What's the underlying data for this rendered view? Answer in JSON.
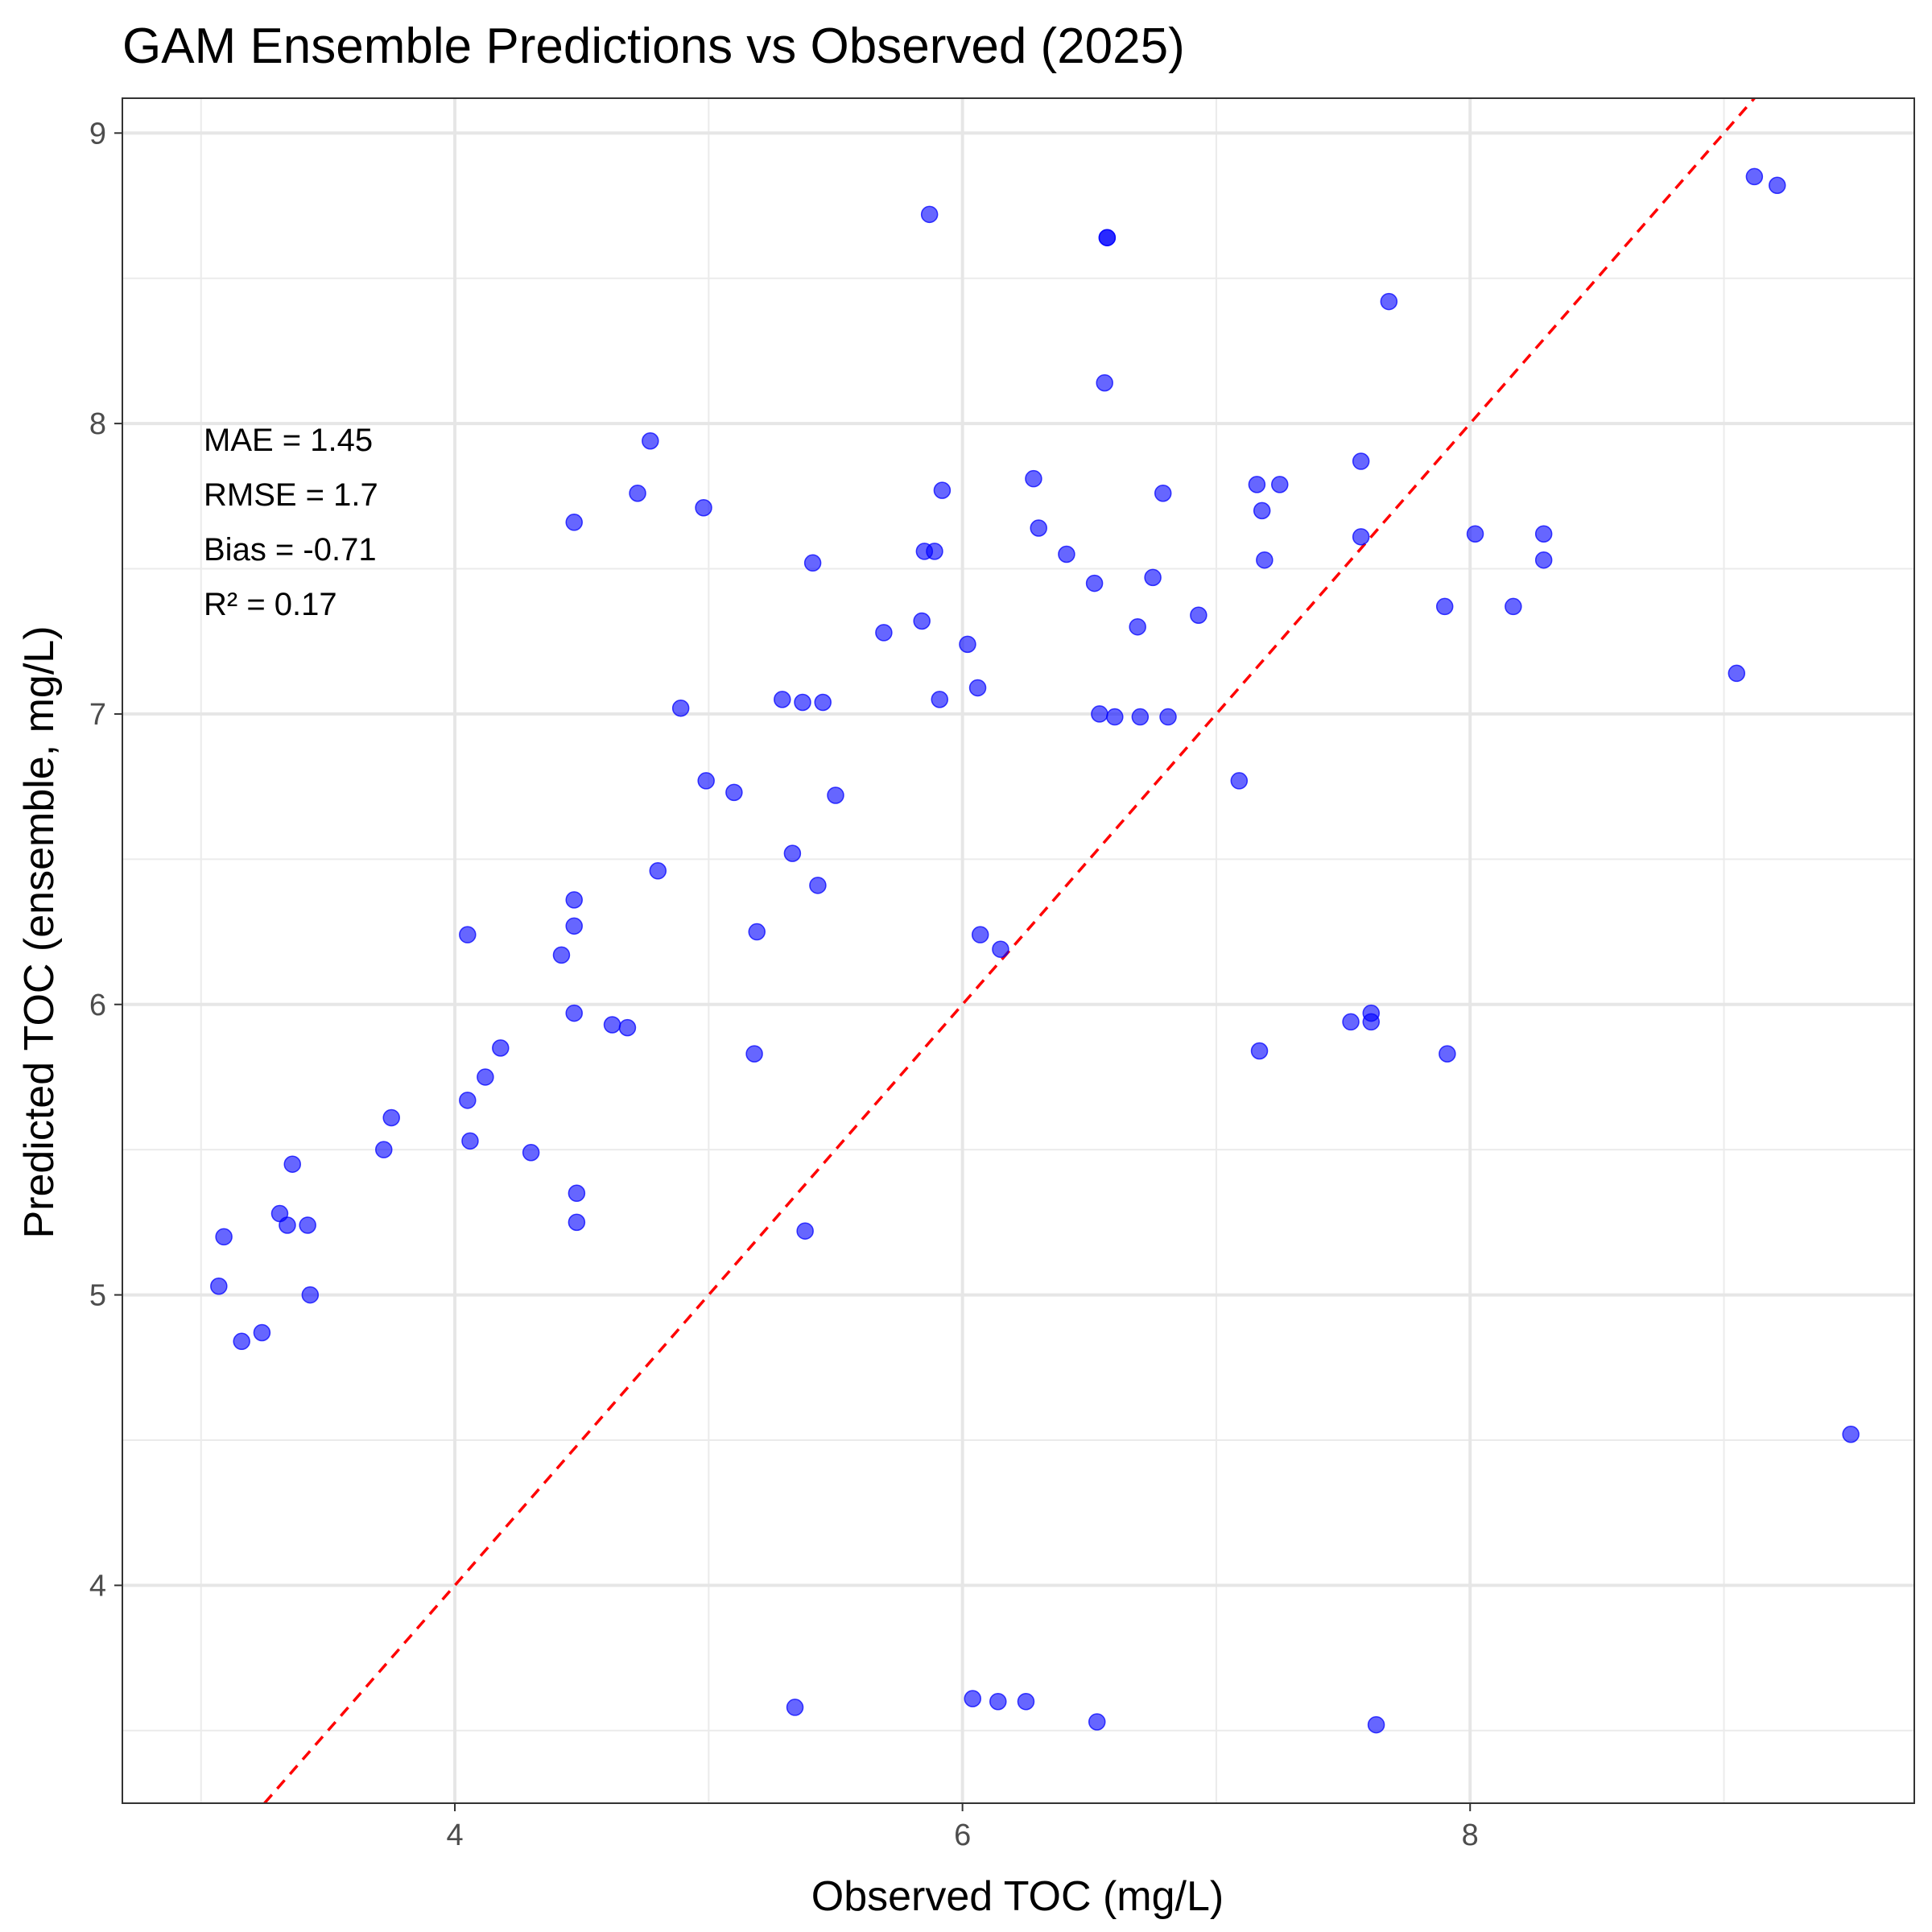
{
  "chart_data": {
    "type": "scatter",
    "title": "GAM Ensemble Predictions vs Observed (2025)",
    "xlabel": "Observed TOC (mg/L)",
    "ylabel": "Predicted TOC (ensemble, mg/L)",
    "xlim": [
      2.69,
      9.75
    ],
    "ylim": [
      3.25,
      9.12
    ],
    "x_ticks": [
      4,
      6,
      8
    ],
    "x_tick_labels": [
      "4",
      "6",
      "8"
    ],
    "y_ticks": [
      4,
      5,
      6,
      7,
      8,
      9
    ],
    "y_tick_labels": [
      "4",
      "5",
      "6",
      "7",
      "8",
      "9"
    ],
    "grid": true,
    "point_color": "#0000ff",
    "reference_line": {
      "type": "y=x",
      "color": "#ff0000",
      "style": "dashed"
    },
    "annotations": [
      "MAE = 1.45",
      "RMSE = 1.7",
      "Bias = -0.71",
      "R² = 0.17"
    ],
    "points": [
      {
        "x": 5.87,
        "y": 8.72
      },
      {
        "x": 6.57,
        "y": 8.64
      },
      {
        "x": 6.57,
        "y": 8.64
      },
      {
        "x": 9.12,
        "y": 8.85
      },
      {
        "x": 9.21,
        "y": 8.82
      },
      {
        "x": 7.68,
        "y": 8.42
      },
      {
        "x": 6.56,
        "y": 8.14
      },
      {
        "x": 4.77,
        "y": 7.94
      },
      {
        "x": 4.72,
        "y": 7.76
      },
      {
        "x": 4.98,
        "y": 7.71
      },
      {
        "x": 4.47,
        "y": 7.66
      },
      {
        "x": 5.92,
        "y": 7.77
      },
      {
        "x": 6.28,
        "y": 7.81
      },
      {
        "x": 6.79,
        "y": 7.76
      },
      {
        "x": 7.16,
        "y": 7.79
      },
      {
        "x": 7.25,
        "y": 7.79
      },
      {
        "x": 7.57,
        "y": 7.87
      },
      {
        "x": 7.18,
        "y": 7.7
      },
      {
        "x": 6.3,
        "y": 7.64
      },
      {
        "x": 5.85,
        "y": 7.56
      },
      {
        "x": 5.89,
        "y": 7.56
      },
      {
        "x": 6.41,
        "y": 7.55
      },
      {
        "x": 5.41,
        "y": 7.52
      },
      {
        "x": 7.19,
        "y": 7.53
      },
      {
        "x": 7.57,
        "y": 7.61
      },
      {
        "x": 8.02,
        "y": 7.62
      },
      {
        "x": 8.29,
        "y": 7.62
      },
      {
        "x": 8.29,
        "y": 7.53
      },
      {
        "x": 6.52,
        "y": 7.45
      },
      {
        "x": 6.75,
        "y": 7.47
      },
      {
        "x": 7.9,
        "y": 7.37
      },
      {
        "x": 8.17,
        "y": 7.37
      },
      {
        "x": 6.93,
        "y": 7.34
      },
      {
        "x": 5.84,
        "y": 7.32
      },
      {
        "x": 5.69,
        "y": 7.28
      },
      {
        "x": 6.69,
        "y": 7.3
      },
      {
        "x": 6.02,
        "y": 7.24
      },
      {
        "x": 9.05,
        "y": 7.14
      },
      {
        "x": 6.06,
        "y": 7.09
      },
      {
        "x": 5.29,
        "y": 7.05
      },
      {
        "x": 5.37,
        "y": 7.04
      },
      {
        "x": 5.45,
        "y": 7.04
      },
      {
        "x": 5.91,
        "y": 7.05
      },
      {
        "x": 4.89,
        "y": 7.02
      },
      {
        "x": 6.54,
        "y": 7.0
      },
      {
        "x": 6.6,
        "y": 6.99
      },
      {
        "x": 6.7,
        "y": 6.99
      },
      {
        "x": 6.81,
        "y": 6.99
      },
      {
        "x": 4.99,
        "y": 6.77
      },
      {
        "x": 5.1,
        "y": 6.73
      },
      {
        "x": 5.5,
        "y": 6.72
      },
      {
        "x": 7.09,
        "y": 6.77
      },
      {
        "x": 5.33,
        "y": 6.52
      },
      {
        "x": 4.8,
        "y": 6.46
      },
      {
        "x": 5.43,
        "y": 6.41
      },
      {
        "x": 4.47,
        "y": 6.36
      },
      {
        "x": 4.47,
        "y": 6.27
      },
      {
        "x": 4.05,
        "y": 6.24
      },
      {
        "x": 5.19,
        "y": 6.25
      },
      {
        "x": 6.07,
        "y": 6.24
      },
      {
        "x": 6.15,
        "y": 6.19
      },
      {
        "x": 4.42,
        "y": 6.17
      },
      {
        "x": 4.47,
        "y": 5.97
      },
      {
        "x": 4.62,
        "y": 5.93
      },
      {
        "x": 4.68,
        "y": 5.92
      },
      {
        "x": 7.53,
        "y": 5.94
      },
      {
        "x": 7.61,
        "y": 5.94
      },
      {
        "x": 7.61,
        "y": 5.97
      },
      {
        "x": 4.18,
        "y": 5.85
      },
      {
        "x": 5.18,
        "y": 5.83
      },
      {
        "x": 7.17,
        "y": 5.84
      },
      {
        "x": 7.91,
        "y": 5.83
      },
      {
        "x": 4.12,
        "y": 5.75
      },
      {
        "x": 4.05,
        "y": 5.67
      },
      {
        "x": 3.75,
        "y": 5.61
      },
      {
        "x": 4.06,
        "y": 5.53
      },
      {
        "x": 3.72,
        "y": 5.5
      },
      {
        "x": 4.3,
        "y": 5.49
      },
      {
        "x": 3.36,
        "y": 5.45
      },
      {
        "x": 4.48,
        "y": 5.35
      },
      {
        "x": 3.31,
        "y": 5.28
      },
      {
        "x": 4.48,
        "y": 5.25
      },
      {
        "x": 3.34,
        "y": 5.24
      },
      {
        "x": 3.42,
        "y": 5.24
      },
      {
        "x": 5.38,
        "y": 5.22
      },
      {
        "x": 3.09,
        "y": 5.2
      },
      {
        "x": 3.07,
        "y": 5.03
      },
      {
        "x": 3.43,
        "y": 5.0
      },
      {
        "x": 3.24,
        "y": 4.87
      },
      {
        "x": 3.16,
        "y": 4.84
      },
      {
        "x": 9.5,
        "y": 4.52
      },
      {
        "x": 6.04,
        "y": 3.61
      },
      {
        "x": 6.14,
        "y": 3.6
      },
      {
        "x": 6.25,
        "y": 3.6
      },
      {
        "x": 5.34,
        "y": 3.58
      },
      {
        "x": 6.53,
        "y": 3.53
      },
      {
        "x": 7.63,
        "y": 3.52
      }
    ]
  }
}
